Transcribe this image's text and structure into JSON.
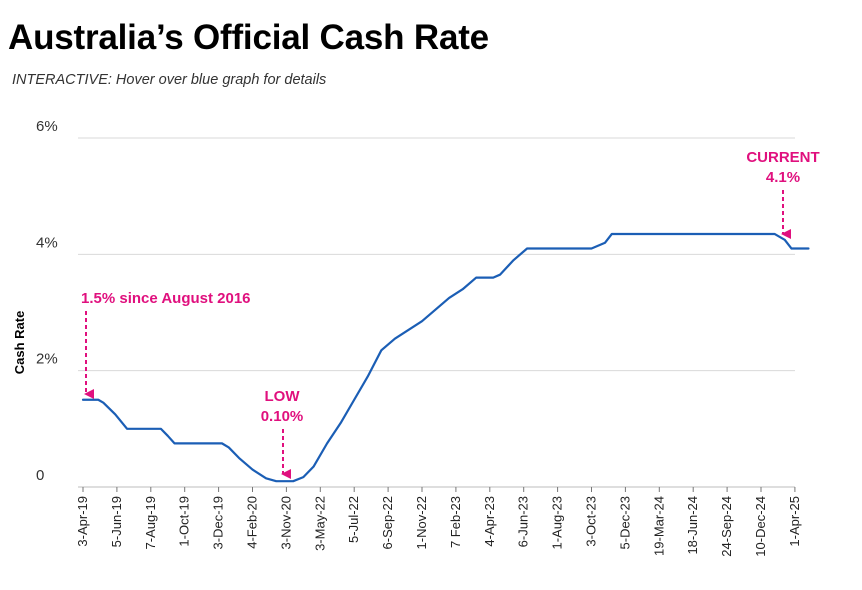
{
  "header": {
    "title": "Australia’s Official Cash Rate",
    "subtitle": "INTERACTIVE: Hover over blue graph for details"
  },
  "colors": {
    "line": "#1b5eb5",
    "annotation": "#e0107e",
    "grid": "#d9d9d9"
  },
  "chart_data": {
    "type": "line",
    "ylabel": "Cash Rate",
    "ylim": [
      0,
      6
    ],
    "yticks": [
      {
        "value": 0,
        "label": "0"
      },
      {
        "value": 2,
        "label": "2%"
      },
      {
        "value": 4,
        "label": "4%"
      },
      {
        "value": 6,
        "label": "6%"
      }
    ],
    "categories": [
      "3-Apr-19",
      "5-Jun-19",
      "7-Aug-19",
      "1-Oct-19",
      "3-Dec-19",
      "4-Feb-20",
      "3-Nov-20",
      "3-May-22",
      "5-Jul-22",
      "6-Sep-22",
      "1-Nov-22",
      "7 Feb-23",
      "4-Apr-23",
      "6-Jun-23",
      "1-Aug-23",
      "3-Oct-23",
      "5-Dec-23",
      "19-Mar-24",
      "18-Jun-24",
      "24-Sep-24",
      "10-Dec-24",
      "1-Apr-25"
    ],
    "series": [
      {
        "points": [
          [
            0.0,
            1.5
          ],
          [
            0.45,
            1.5
          ],
          [
            0.6,
            1.45
          ],
          [
            0.95,
            1.25
          ],
          [
            1.3,
            1.0
          ],
          [
            1.7,
            1.0
          ],
          [
            2.1,
            1.0
          ],
          [
            2.3,
            1.0
          ],
          [
            2.5,
            0.88
          ],
          [
            2.7,
            0.75
          ],
          [
            3.2,
            0.75
          ],
          [
            3.8,
            0.75
          ],
          [
            4.1,
            0.75
          ],
          [
            4.3,
            0.68
          ],
          [
            4.6,
            0.5
          ],
          [
            5.0,
            0.3
          ],
          [
            5.4,
            0.15
          ],
          [
            5.7,
            0.1
          ],
          [
            6.2,
            0.1
          ],
          [
            6.5,
            0.17
          ],
          [
            6.8,
            0.35
          ],
          [
            7.2,
            0.75
          ],
          [
            7.6,
            1.1
          ],
          [
            8.0,
            1.5
          ],
          [
            8.4,
            1.9
          ],
          [
            8.8,
            2.35
          ],
          [
            9.2,
            2.55
          ],
          [
            9.6,
            2.7
          ],
          [
            10.0,
            2.85
          ],
          [
            10.4,
            3.05
          ],
          [
            10.8,
            3.25
          ],
          [
            11.2,
            3.4
          ],
          [
            11.6,
            3.6
          ],
          [
            12.1,
            3.6
          ],
          [
            12.3,
            3.65
          ],
          [
            12.7,
            3.9
          ],
          [
            13.1,
            4.1
          ],
          [
            13.5,
            4.1
          ],
          [
            14.0,
            4.1
          ],
          [
            14.5,
            4.1
          ],
          [
            15.0,
            4.1
          ],
          [
            15.4,
            4.2
          ],
          [
            15.6,
            4.35
          ],
          [
            16.0,
            4.35
          ],
          [
            17.0,
            4.35
          ],
          [
            18.0,
            4.35
          ],
          [
            19.0,
            4.35
          ],
          [
            20.0,
            4.35
          ],
          [
            20.4,
            4.35
          ],
          [
            20.7,
            4.25
          ],
          [
            20.9,
            4.1
          ],
          [
            21.4,
            4.1
          ]
        ]
      }
    ],
    "annotations": [
      {
        "lines": [
          "1.5% since August 2016"
        ],
        "x": 0.3,
        "y": 1.5
      },
      {
        "lines": [
          "LOW",
          "0.10%"
        ],
        "x": 5.8,
        "y": 0.1
      },
      {
        "lines": [
          "CURRENT",
          "4.1%"
        ],
        "x": 21.0,
        "y": 4.1
      }
    ]
  }
}
